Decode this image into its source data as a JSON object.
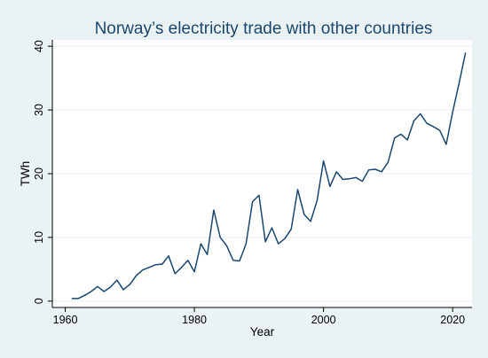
{
  "chart_data": {
    "type": "line",
    "title": "Norway’s electricity trade with other countries",
    "xlabel": "Year",
    "ylabel": "TWh",
    "xlim": [
      1958,
      2023
    ],
    "ylim": [
      -1,
      41
    ],
    "xticks": [
      1960,
      1980,
      2000,
      2020
    ],
    "yticks": [
      0,
      10,
      20,
      30,
      40
    ],
    "grid": true,
    "legend": "none",
    "colors": {
      "background": "#eaf2f3",
      "plot_area": "#ffffff",
      "line": "#1a476f",
      "grid": "#eaf2f3",
      "title": "#1a476f"
    },
    "series": [
      {
        "x": [
          1961,
          1962,
          1963,
          1964,
          1965,
          1966,
          1967,
          1968,
          1969,
          1970,
          1971,
          1972,
          1973,
          1974,
          1975,
          1976,
          1977,
          1978,
          1979,
          1980,
          1981,
          1982,
          1983,
          1984,
          1985,
          1986,
          1987,
          1988,
          1989,
          1990,
          1991,
          1992,
          1993,
          1994,
          1995,
          1996,
          1997,
          1998,
          1999,
          2000,
          2001,
          2002,
          2003,
          2004,
          2005,
          2006,
          2007,
          2008,
          2009,
          2010,
          2011,
          2012,
          2013,
          2014,
          2015,
          2016,
          2017,
          2018,
          2019,
          2020,
          2021,
          2022
        ],
        "values": [
          0.4,
          0.4,
          0.9,
          1.5,
          2.3,
          1.5,
          2.2,
          3.3,
          1.8,
          2.6,
          4.0,
          4.9,
          5.3,
          5.7,
          5.8,
          7.1,
          4.3,
          5.3,
          6.4,
          4.6,
          9.0,
          7.3,
          14.3,
          10.0,
          8.7,
          6.4,
          6.3,
          9.0,
          15.6,
          16.6,
          9.3,
          11.5,
          9.0,
          9.8,
          11.3,
          17.5,
          13.6,
          12.5,
          15.8,
          22.0,
          18.0,
          20.3,
          19.1,
          19.2,
          19.4,
          18.8,
          20.6,
          20.7,
          20.3,
          21.8,
          25.6,
          26.2,
          25.3,
          28.3,
          29.4,
          27.9,
          27.4,
          26.8,
          24.6,
          29.7,
          34.2,
          39.0
        ]
      }
    ]
  }
}
